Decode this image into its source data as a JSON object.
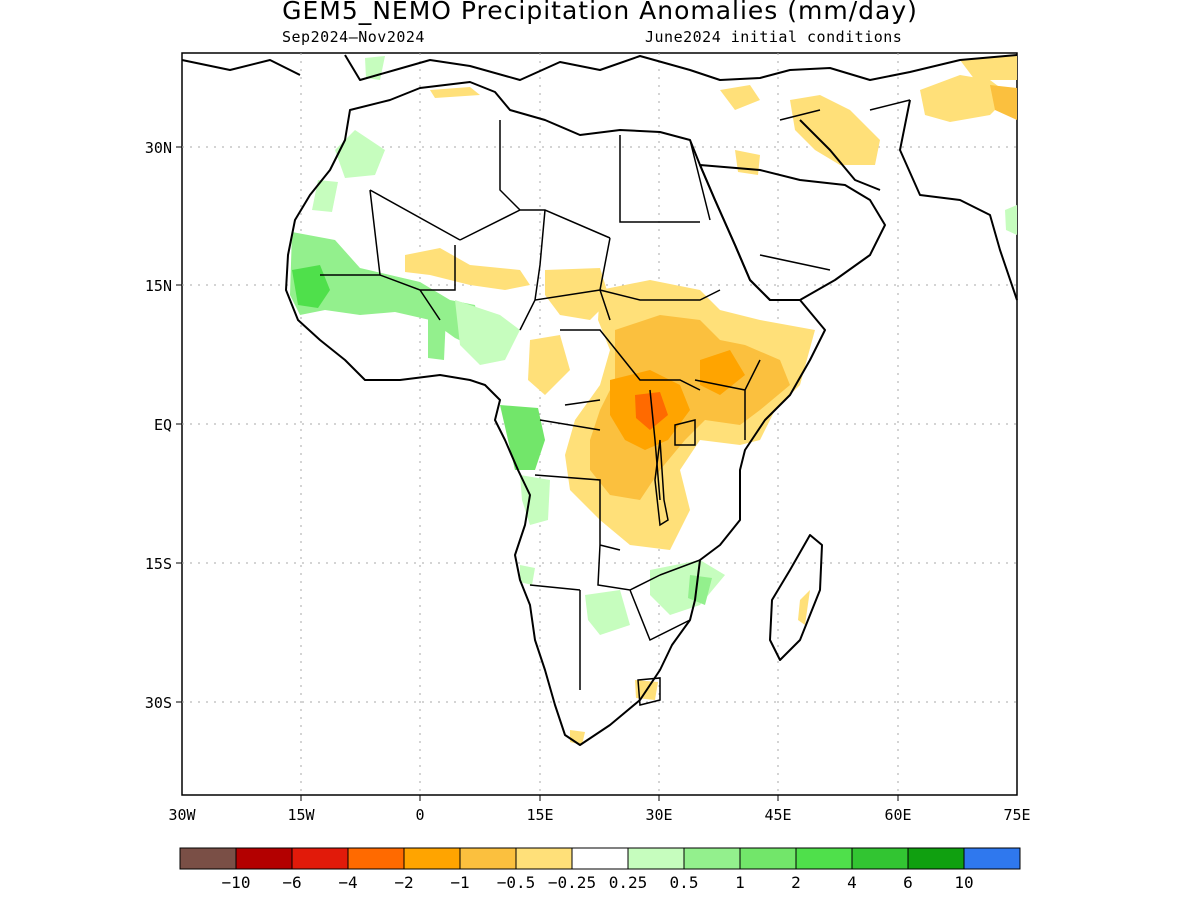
{
  "title": "GEM5_NEMO Precipitation Anomalies (mm/day)",
  "subtitle_left": "Sep2024–Nov2024",
  "subtitle_right": "June2024 initial conditions",
  "lat_labels": [
    "30N",
    "15N",
    "EQ",
    "15S",
    "30S"
  ],
  "lon_labels": [
    "30W",
    "15W",
    "0",
    "15E",
    "30E",
    "45E",
    "60E",
    "75E"
  ],
  "legend": {
    "colors": [
      "#7a4f46",
      "#b30000",
      "#e11a0a",
      "#ff6a00",
      "#ffa400",
      "#fbc03e",
      "#ffe079",
      "#ffffff",
      "#c6fdbe",
      "#93f08d",
      "#72e66a",
      "#4fe04b",
      "#32c532",
      "#10a010",
      "#2f78ee"
    ],
    "labels": [
      "−10",
      "−6",
      "−4",
      "−2",
      "−1",
      "−0.5",
      "−0.25",
      "0.25",
      "0.5",
      "1",
      "2",
      "4",
      "6",
      "10"
    ]
  }
}
